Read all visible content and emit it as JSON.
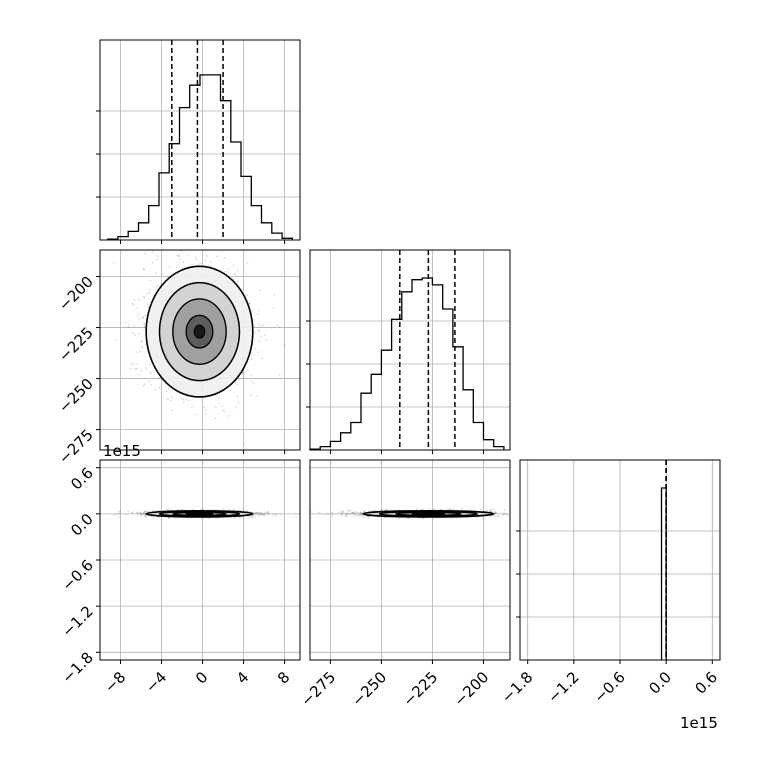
{
  "chart_data": {
    "type": "corner",
    "grid": true,
    "offset_text": "1e15",
    "parameters": [
      {
        "ticks": [
          -8,
          -4,
          0,
          4,
          8
        ],
        "tick_labels": [
          "−8",
          "−4",
          "0",
          "4",
          "8"
        ],
        "range": [
          -10,
          9.5
        ],
        "hist_bins": [
          -9.25,
          -8.25,
          -7.25,
          -6.25,
          -5.25,
          -4.25,
          -3.25,
          -2.25,
          -1.25,
          -0.25,
          0.75,
          1.75,
          2.75,
          3.75,
          4.75,
          5.75,
          6.75,
          7.75
        ],
        "hist_counts": [
          0.005,
          0.02,
          0.05,
          0.1,
          0.2,
          0.39,
          0.56,
          0.77,
          0.9,
          0.96,
          0.96,
          0.81,
          0.57,
          0.37,
          0.2,
          0.1,
          0.04,
          0.01
        ],
        "quantiles": [
          -3,
          -0.5,
          2
        ]
      },
      {
        "ticks": [
          -275,
          -250,
          -225,
          -200
        ],
        "tick_labels": [
          "−275",
          "−250",
          "−225",
          "−200"
        ],
        "range": [
          -285,
          -187
        ],
        "hist_bins": [
          -285,
          -280,
          -275,
          -270,
          -265,
          -260,
          -255,
          -250,
          -245,
          -240,
          -235,
          -230,
          -225,
          -220,
          -215,
          -210,
          -205,
          -200,
          -195,
          -190
        ],
        "hist_counts": [
          0.005,
          0.02,
          0.05,
          0.1,
          0.16,
          0.33,
          0.44,
          0.58,
          0.76,
          0.92,
          0.99,
          1.0,
          0.96,
          0.82,
          0.6,
          0.35,
          0.16,
          0.06,
          0.02
        ],
        "quantiles": [
          -241,
          -227,
          -214
        ]
      },
      {
        "ticks": [
          -1.8,
          -1.2,
          -0.6,
          0.0,
          0.6
        ],
        "tick_labels": [
          "−1.8",
          "−1.2",
          "−0.6",
          "0.0",
          "0.6"
        ],
        "range": [
          -1.9,
          0.7
        ],
        "hist_bins": [
          -0.06,
          0.0
        ],
        "hist_counts": [
          1.0
        ],
        "quantiles": [
          0.0,
          0.0,
          0.0
        ]
      }
    ],
    "y_ticks": {
      "row1": [
        "−200",
        "−225",
        "−250",
        "−275"
      ],
      "row2": [
        "0.6",
        "0.0",
        "−0.6",
        "−1.2",
        "−1.8"
      ]
    },
    "scatter_2d": [
      {
        "row": 1,
        "col": 0,
        "center": [
          -0.3,
          -227
        ],
        "sigma": [
          2.6,
          16
        ]
      },
      {
        "row": 2,
        "col": 0,
        "center": [
          -0.3,
          0.0
        ],
        "sigma": [
          2.6,
          0.02
        ]
      },
      {
        "row": 2,
        "col": 1,
        "center": [
          -227,
          0.0
        ],
        "sigma": [
          16,
          0.02
        ]
      }
    ],
    "colors": {
      "line": "#000000",
      "grid": "#b0b0b0",
      "points": "#555555"
    }
  }
}
